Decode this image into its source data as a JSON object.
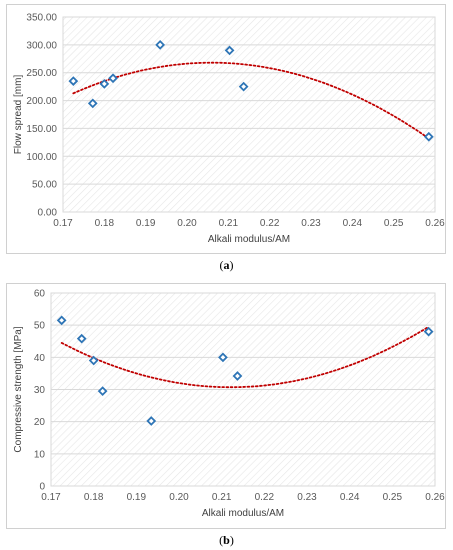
{
  "chart_data": [
    {
      "type": "scatter",
      "panel_label": "a",
      "xlabel": "Alkali modulus/AM",
      "ylabel": "Flow spread  [mm]",
      "xlim": [
        0.17,
        0.26
      ],
      "ylim": [
        0,
        350
      ],
      "x_ticks": [
        "0.17",
        "0.18",
        "0.19",
        "0.20",
        "0.21",
        "0.22",
        "0.23",
        "0.24",
        "0.25",
        "0.26"
      ],
      "y_ticks": [
        "0.00",
        "50.00",
        "100.00",
        "150.00",
        "200.00",
        "250.00",
        "300.00",
        "350.00"
      ],
      "grid": "horizontal",
      "points": [
        {
          "x": 0.1725,
          "y": 235
        },
        {
          "x": 0.1772,
          "y": 195
        },
        {
          "x": 0.18,
          "y": 230
        },
        {
          "x": 0.1821,
          "y": 240
        },
        {
          "x": 0.1935,
          "y": 300
        },
        {
          "x": 0.2103,
          "y": 290
        },
        {
          "x": 0.2137,
          "y": 225
        },
        {
          "x": 0.2585,
          "y": 135
        }
      ],
      "trendline": {
        "type": "polynomial",
        "order": 2,
        "x_range": [
          0.1725,
          0.2585
        ],
        "anchor_points": [
          [
            0.1725,
            213
          ],
          [
            0.206,
            268
          ],
          [
            0.2585,
            132
          ]
        ]
      },
      "colors": {
        "marker": "#2e75b6",
        "trend": "#c00000",
        "grid": "#d9d9d9",
        "hatch": "#e6e6e6"
      }
    },
    {
      "type": "scatter",
      "panel_label": "b",
      "xlabel": "Alkali modulus/AM",
      "ylabel": "Compressive strength [MPa]",
      "xlim": [
        0.17,
        0.26
      ],
      "ylim": [
        0,
        60
      ],
      "x_ticks": [
        "0.17",
        "0.18",
        "0.19",
        "0.20",
        "0.21",
        "0.22",
        "0.23",
        "0.24",
        "0.25",
        "0.26"
      ],
      "y_ticks": [
        "0",
        "10",
        "20",
        "30",
        "40",
        "50",
        "60"
      ],
      "grid": "horizontal",
      "points": [
        {
          "x": 0.1725,
          "y": 51.5
        },
        {
          "x": 0.1772,
          "y": 45.8
        },
        {
          "x": 0.18,
          "y": 39
        },
        {
          "x": 0.1821,
          "y": 29.5
        },
        {
          "x": 0.1935,
          "y": 20.2
        },
        {
          "x": 0.2103,
          "y": 40
        },
        {
          "x": 0.2137,
          "y": 34.2
        },
        {
          "x": 0.2585,
          "y": 48
        }
      ],
      "trendline": {
        "type": "polynomial",
        "order": 2,
        "x_range": [
          0.1725,
          0.2585
        ],
        "anchor_points": [
          [
            0.1725,
            44.5
          ],
          [
            0.212,
            30.7
          ],
          [
            0.2585,
            49.5
          ]
        ]
      },
      "colors": {
        "marker": "#2e75b6",
        "trend": "#c00000",
        "grid": "#d9d9d9",
        "hatch": "#e6e6e6"
      }
    }
  ],
  "captions": [
    {
      "label": "a",
      "open": "(",
      "close": ")"
    },
    {
      "label": "b",
      "open": "(",
      "close": ")"
    }
  ]
}
